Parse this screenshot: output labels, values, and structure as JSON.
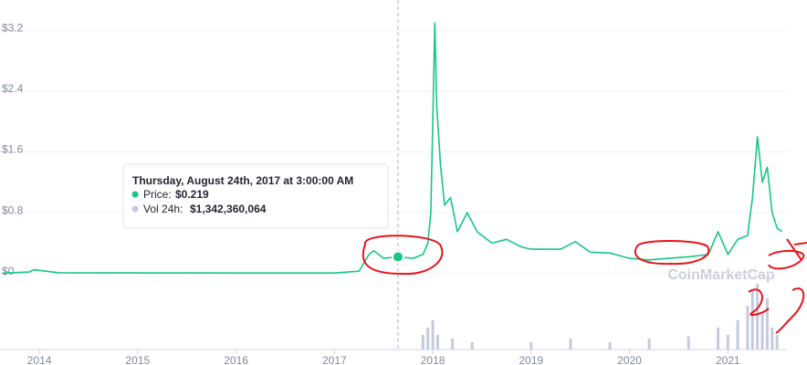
{
  "chart_data": {
    "type": "line",
    "x": [
      2013.63,
      2013.9,
      2013.94,
      2014.2,
      2015.0,
      2016.0,
      2017.0,
      2017.25,
      2017.35,
      2017.4,
      2017.5,
      2017.646,
      2017.8,
      2017.9,
      2017.95,
      2017.98,
      2018.0,
      2018.02,
      2018.04,
      2018.08,
      2018.12,
      2018.18,
      2018.25,
      2018.35,
      2018.45,
      2018.6,
      2018.75,
      2018.9,
      2019.0,
      2019.3,
      2019.45,
      2019.6,
      2019.8,
      2020.0,
      2020.2,
      2020.4,
      2020.6,
      2020.8,
      2020.9,
      2021.0,
      2021.05,
      2021.1,
      2021.2,
      2021.25,
      2021.3,
      2021.35,
      2021.4,
      2021.45,
      2021.5,
      2021.55
    ],
    "values": [
      0.005,
      0.02,
      0.05,
      0.01,
      0.008,
      0.006,
      0.006,
      0.03,
      0.25,
      0.3,
      0.2,
      0.219,
      0.2,
      0.25,
      0.4,
      0.8,
      2.0,
      3.3,
      2.2,
      1.4,
      0.9,
      1.0,
      0.55,
      0.8,
      0.55,
      0.4,
      0.45,
      0.35,
      0.32,
      0.32,
      0.42,
      0.28,
      0.27,
      0.2,
      0.18,
      0.2,
      0.22,
      0.25,
      0.55,
      0.25,
      0.35,
      0.45,
      0.5,
      1.0,
      1.8,
      1.2,
      1.4,
      0.8,
      0.6,
      0.55
    ],
    "color": "#16c784",
    "xlim": [
      2013.6,
      2021.6
    ],
    "xticks": [
      2014,
      2015,
      2016,
      2017,
      2018,
      2019,
      2020,
      2021
    ],
    "ylim": [
      -1,
      3.6
    ],
    "yticks": [
      {
        "value": 0,
        "label": "$0"
      },
      {
        "value": 0.8,
        "label": "$0.8"
      },
      {
        "value": 1.6,
        "label": "$1.6"
      },
      {
        "value": 2.4,
        "label": "$2.4"
      },
      {
        "value": 3.2,
        "label": "$3.2"
      }
    ],
    "grid": true,
    "volume": {
      "color": "#c5cbdc",
      "x": [
        2017.9,
        2017.95,
        2018.0,
        2018.05,
        2018.2,
        2018.4,
        2019.0,
        2019.4,
        2019.8,
        2020.2,
        2020.6,
        2020.9,
        2021.0,
        2021.1,
        2021.2,
        2021.25,
        2021.3,
        2021.35,
        2021.4,
        2021.45,
        2021.5
      ],
      "values": [
        2000000000,
        3000000000,
        4000000000,
        2000000000,
        1500000000,
        1000000000,
        1000000000,
        1500000000,
        1000000000,
        1500000000,
        1800000000,
        3000000000,
        2000000000,
        4000000000,
        6000000000,
        8000000000,
        9000000000,
        5000000000,
        7000000000,
        3000000000,
        2000000000
      ],
      "ylim": [
        0,
        10000000000
      ]
    },
    "watermark": "CoinMarketCap",
    "tooltip": {
      "date": "Thursday, August 24th, 2017 at 3:00:00 AM",
      "price_label": "Price:",
      "price": "$0.219",
      "volume_label": "Vol 24h:",
      "volume": "$1,342,360,064",
      "x": 2017.646,
      "value": 0.219
    }
  }
}
